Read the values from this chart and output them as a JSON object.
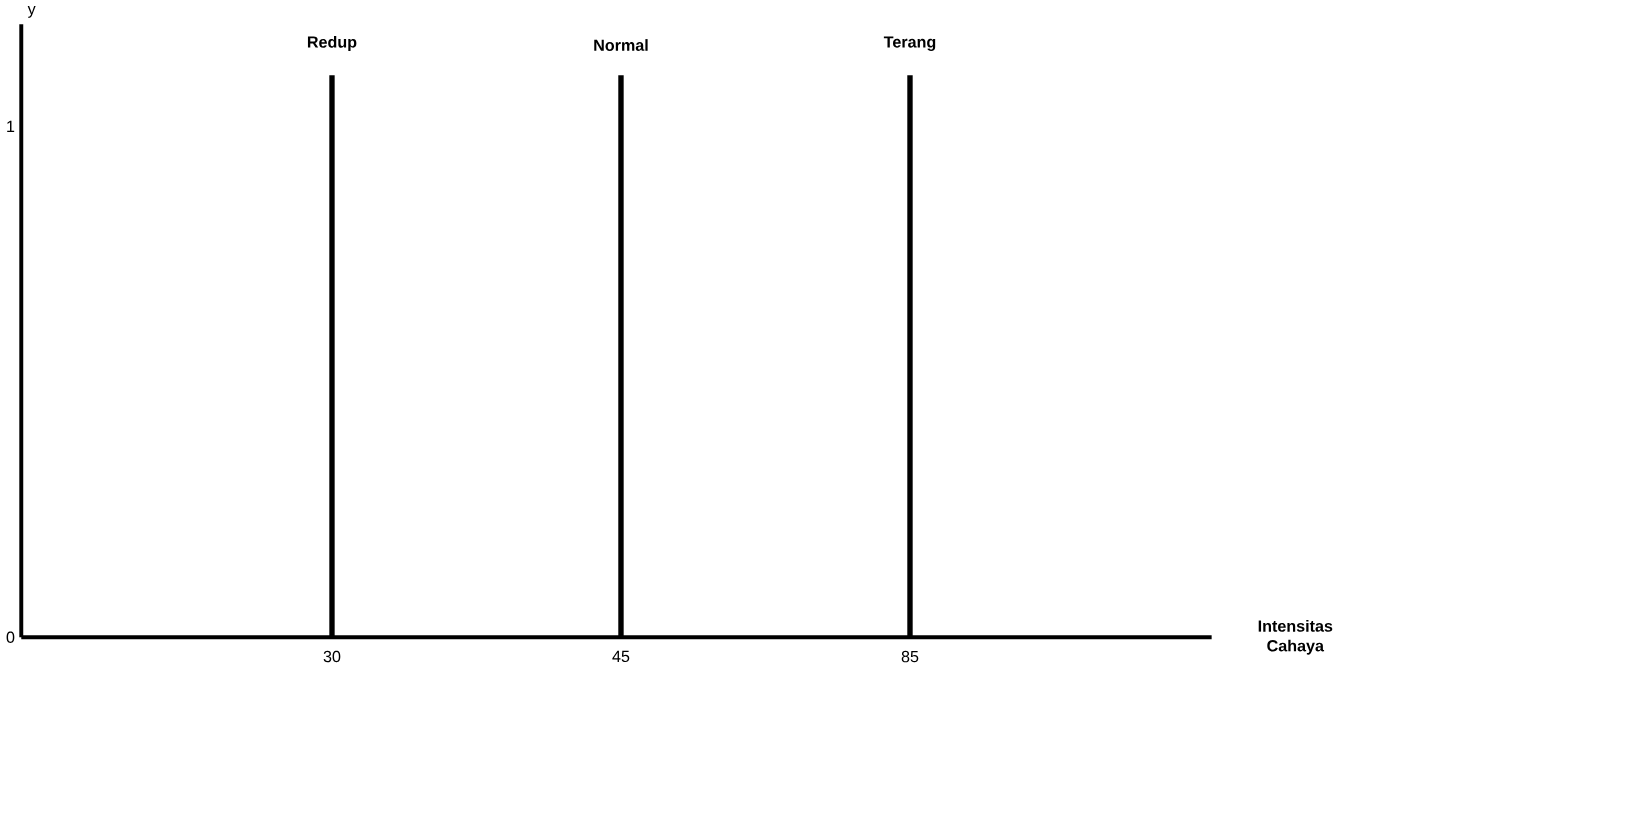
{
  "chart_data": {
    "type": "bar",
    "xlabel": "Intensitas Cahaya",
    "ylabel": "y",
    "categories": [
      "30",
      "45",
      "85"
    ],
    "values": [
      1.1,
      1.1,
      1.1
    ],
    "color": "#000000",
    "ylim": [
      0,
      1.2
    ],
    "yticks": [
      0,
      1
    ],
    "annotations": [
      {
        "text": "Redup",
        "x": "30",
        "y": 1.1
      },
      {
        "text": "Normal",
        "x": "45",
        "y": 1.1
      },
      {
        "text": "Terang",
        "x": "85",
        "y": 1.1
      }
    ]
  }
}
